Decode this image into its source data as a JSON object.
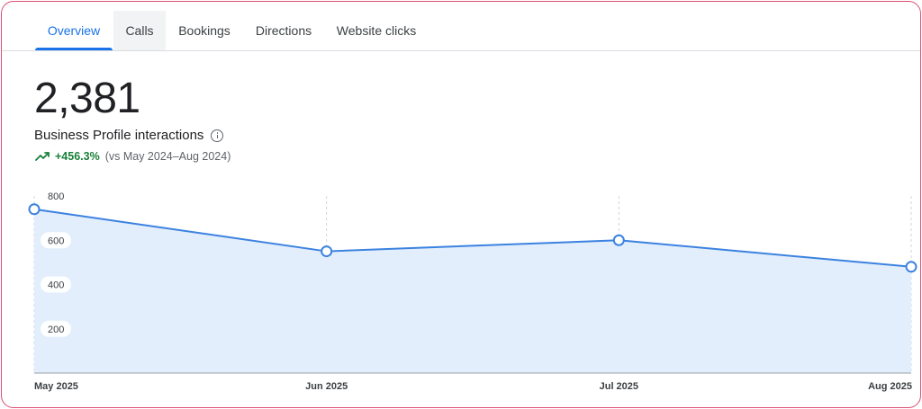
{
  "tabs": [
    {
      "label": "Overview",
      "active": true
    },
    {
      "label": "Calls",
      "active": false
    },
    {
      "label": "Bookings",
      "active": false
    },
    {
      "label": "Directions",
      "active": false
    },
    {
      "label": "Website clicks",
      "active": false
    }
  ],
  "metric": {
    "value": "2,381",
    "label": "Business Profile interactions",
    "change": "+456.3%",
    "compare": "(vs May 2024–Aug 2024)",
    "trend_icon": "trending-up-icon"
  },
  "colors": {
    "accent": "#1a73e8",
    "line": "#3b82e0",
    "area": "#e3eefc",
    "positive": "#188038"
  },
  "chart_data": {
    "type": "area",
    "categories": [
      "May 2025",
      "Jun 2025",
      "Jul 2025",
      "Aug 2025"
    ],
    "values": [
      740,
      550,
      600,
      480
    ],
    "ylim": [
      0,
      800
    ],
    "yticks": [
      200,
      400,
      600,
      800
    ],
    "ytick_labels": [
      "200",
      "400",
      "600",
      "800"
    ],
    "grid": "vertical dashed",
    "title": "",
    "xlabel": "",
    "ylabel": ""
  }
}
